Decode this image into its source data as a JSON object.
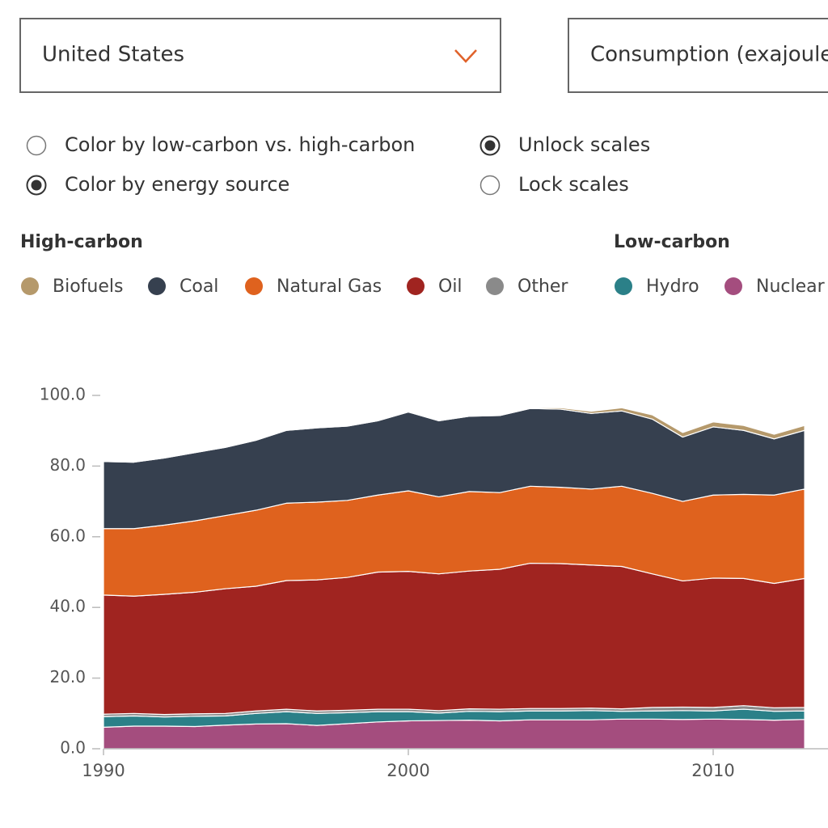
{
  "controls": {
    "country_select": "United States",
    "metric_select": "Consumption (exajoules)",
    "color_options": [
      {
        "label": "Color by low-carbon vs. high-carbon",
        "selected": false
      },
      {
        "label": "Color by energy source",
        "selected": true
      }
    ],
    "scale_options": [
      {
        "label": "Unlock scales",
        "selected": true
      },
      {
        "label": "Lock scales",
        "selected": false
      }
    ],
    "legend_titles": [
      "High-carbon",
      "Low-carbon"
    ]
  },
  "chart_data": {
    "type": "stacked_area",
    "x": [
      1990,
      1991,
      1992,
      1993,
      1994,
      1995,
      1996,
      1997,
      1998,
      1999,
      2000,
      2001,
      2002,
      2003,
      2004,
      2005,
      2006,
      2007,
      2008,
      2009,
      2010,
      2011,
      2012,
      2013
    ],
    "xlim": [
      1990,
      2014
    ],
    "xticks": [
      1990,
      2000,
      2010
    ],
    "ylim": [
      0,
      100
    ],
    "yticks": [
      {
        "value": 0,
        "label": "0.0"
      },
      {
        "value": 20,
        "label": "20.0"
      },
      {
        "value": 40,
        "label": "40.0"
      },
      {
        "value": 60,
        "label": "60.0"
      },
      {
        "value": 80,
        "label": "80.0"
      },
      {
        "value": 100,
        "label": "100.0"
      }
    ],
    "series": [
      {
        "name": "Nuclear",
        "color": "#a44d7e",
        "values": [
          6.1,
          6.4,
          6.4,
          6.3,
          6.7,
          7.0,
          7.1,
          6.6,
          7.1,
          7.6,
          7.9,
          8.0,
          8.1,
          7.9,
          8.2,
          8.2,
          8.2,
          8.4,
          8.4,
          8.3,
          8.4,
          8.3,
          8.1,
          8.3
        ]
      },
      {
        "name": "Hydro",
        "color": "#2b8088",
        "values": [
          3.0,
          2.9,
          2.6,
          2.9,
          2.6,
          3.0,
          3.4,
          3.4,
          3.1,
          2.9,
          2.6,
          2.1,
          2.5,
          2.6,
          2.5,
          2.5,
          2.6,
          2.2,
          2.3,
          2.5,
          2.3,
          2.9,
          2.5,
          2.4
        ]
      },
      {
        "name": "Other",
        "color": "#8a8a8a",
        "values": [
          0.7,
          0.7,
          0.7,
          0.7,
          0.7,
          0.7,
          0.7,
          0.7,
          0.7,
          0.7,
          0.7,
          0.7,
          0.7,
          0.7,
          0.7,
          0.7,
          0.7,
          0.7,
          1.0,
          1.0,
          1.0,
          1.0,
          1.0,
          1.0
        ]
      },
      {
        "name": "Oil",
        "color": "#a02420",
        "values": [
          33.7,
          33.2,
          34.0,
          34.4,
          35.3,
          35.3,
          36.4,
          37.1,
          37.6,
          38.8,
          39.0,
          38.7,
          39.0,
          39.6,
          41.1,
          41.0,
          40.5,
          40.3,
          37.8,
          35.7,
          36.6,
          36.0,
          35.2,
          36.5
        ]
      },
      {
        "name": "Natural Gas",
        "color": "#df621e",
        "values": [
          18.8,
          19.1,
          19.6,
          20.2,
          20.7,
          21.5,
          21.9,
          22.0,
          21.8,
          21.8,
          22.8,
          21.8,
          22.5,
          21.7,
          21.8,
          21.6,
          21.5,
          22.7,
          22.8,
          22.5,
          23.5,
          23.8,
          25.0,
          25.3
        ]
      },
      {
        "name": "Coal",
        "color": "#36404f",
        "values": [
          19.0,
          18.8,
          19.0,
          19.3,
          19.3,
          19.8,
          20.6,
          21.0,
          21.0,
          21.0,
          22.3,
          21.5,
          21.3,
          21.8,
          22.0,
          22.1,
          21.4,
          21.3,
          21.0,
          18.2,
          19.3,
          18.1,
          15.9,
          16.6
        ]
      },
      {
        "name": "Biofuels",
        "color": "#b5996b",
        "values": [
          0.2,
          0.2,
          0.2,
          0.2,
          0.2,
          0.2,
          0.2,
          0.2,
          0.2,
          0.2,
          0.2,
          0.2,
          0.2,
          0.2,
          0.2,
          0.4,
          0.6,
          0.9,
          1.2,
          1.3,
          1.4,
          1.4,
          1.3,
          1.4
        ]
      }
    ]
  }
}
